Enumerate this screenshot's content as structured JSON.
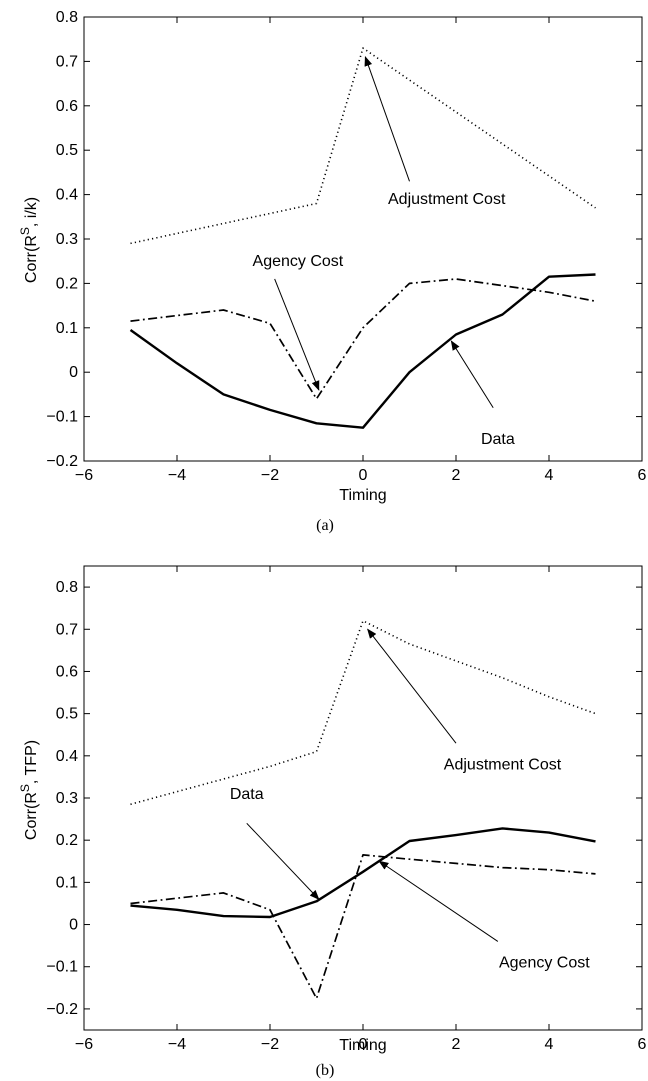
{
  "chart_data": [
    {
      "type": "line",
      "panel_label": "(a)",
      "xlabel": "Timing",
      "ylabel_main": "Corr(R",
      "ylabel_sup": "S",
      "ylabel_rest": ", i/k)",
      "xlim": [
        -6,
        6
      ],
      "ylim": [
        -0.2,
        0.8
      ],
      "xticks": [
        -6,
        -4,
        -2,
        0,
        2,
        4,
        6
      ],
      "yticks": [
        -0.2,
        -0.1,
        0,
        0.1,
        0.2,
        0.3,
        0.4,
        0.5,
        0.6,
        0.7,
        0.8
      ],
      "grid": false,
      "series": [
        {
          "name": "Adjustment Cost",
          "style": "dotted",
          "x": [
            -5,
            -1,
            0,
            5
          ],
          "y": [
            0.29,
            0.38,
            0.73,
            0.37
          ]
        },
        {
          "name": "Agency Cost",
          "style": "dashdot",
          "x": [
            -5,
            -3,
            -2,
            -1,
            0,
            1,
            2,
            3,
            4,
            5
          ],
          "y": [
            0.115,
            0.14,
            0.11,
            -0.06,
            0.1,
            0.2,
            0.21,
            0.195,
            0.18,
            0.16
          ]
        },
        {
          "name": "Data",
          "style": "solid",
          "x": [
            -5,
            -4,
            -3,
            -2,
            -1,
            0,
            1,
            2,
            3,
            4,
            5
          ],
          "y": [
            0.095,
            0.02,
            -0.05,
            -0.085,
            -0.115,
            -0.125,
            0.0,
            0.085,
            0.13,
            0.215,
            0.22
          ]
        }
      ],
      "annotations": [
        {
          "text": "Adjustment Cost",
          "point": [
            0.05,
            0.71
          ],
          "text_at": [
            1.8,
            0.39
          ],
          "arrow_from": [
            1.0,
            0.43
          ]
        },
        {
          "text": "Agency Cost",
          "point": [
            -0.95,
            -0.04
          ],
          "text_at": [
            -1.4,
            0.25
          ],
          "arrow_from": [
            -1.9,
            0.21
          ]
        },
        {
          "text": "Data",
          "point": [
            1.9,
            0.07
          ],
          "text_at": [
            2.9,
            -0.15
          ],
          "arrow_from": [
            2.8,
            -0.08
          ]
        }
      ]
    },
    {
      "type": "line",
      "panel_label": "(b)",
      "xlabel": "Timing",
      "ylabel_main": "Corr(R",
      "ylabel_sup": "S",
      "ylabel_rest": ", TFP)",
      "xlim": [
        -6,
        6
      ],
      "ylim": [
        -0.25,
        0.85
      ],
      "xticks": [
        -6,
        -4,
        -2,
        0,
        2,
        4,
        6
      ],
      "yticks": [
        -0.2,
        -0.1,
        0,
        0.1,
        0.2,
        0.3,
        0.4,
        0.5,
        0.6,
        0.7,
        0.8
      ],
      "grid": false,
      "series": [
        {
          "name": "Adjustment Cost",
          "style": "dotted",
          "x": [
            -5,
            -3,
            -2,
            -1,
            0,
            1,
            2,
            3,
            4,
            5
          ],
          "y": [
            0.285,
            0.345,
            0.375,
            0.41,
            0.72,
            0.665,
            0.625,
            0.585,
            0.54,
            0.5
          ]
        },
        {
          "name": "Agency Cost",
          "style": "dashdot",
          "x": [
            -5,
            -3,
            -2,
            -1,
            0,
            1,
            2,
            3,
            4,
            5
          ],
          "y": [
            0.05,
            0.075,
            0.035,
            -0.175,
            0.165,
            0.155,
            0.145,
            0.135,
            0.13,
            0.12
          ]
        },
        {
          "name": "Data",
          "style": "solid",
          "x": [
            -5,
            -4,
            -3,
            -2,
            -1,
            0,
            1,
            2,
            3,
            4,
            5
          ],
          "y": [
            0.045,
            0.035,
            0.02,
            0.018,
            0.055,
            0.125,
            0.198,
            0.212,
            0.228,
            0.218,
            0.197
          ]
        }
      ],
      "annotations": [
        {
          "text": "Adjustment Cost",
          "point": [
            0.1,
            0.7
          ],
          "text_at": [
            3.0,
            0.38
          ],
          "arrow_from": [
            2.0,
            0.43
          ]
        },
        {
          "text": "Data",
          "point": [
            -0.95,
            0.06
          ],
          "text_at": [
            -2.5,
            0.31
          ],
          "arrow_from": [
            -2.5,
            0.24
          ]
        },
        {
          "text": "Agency Cost",
          "point": [
            0.35,
            0.15
          ],
          "text_at": [
            3.9,
            -0.09
          ],
          "arrow_from": [
            2.9,
            -0.04
          ]
        }
      ]
    }
  ]
}
